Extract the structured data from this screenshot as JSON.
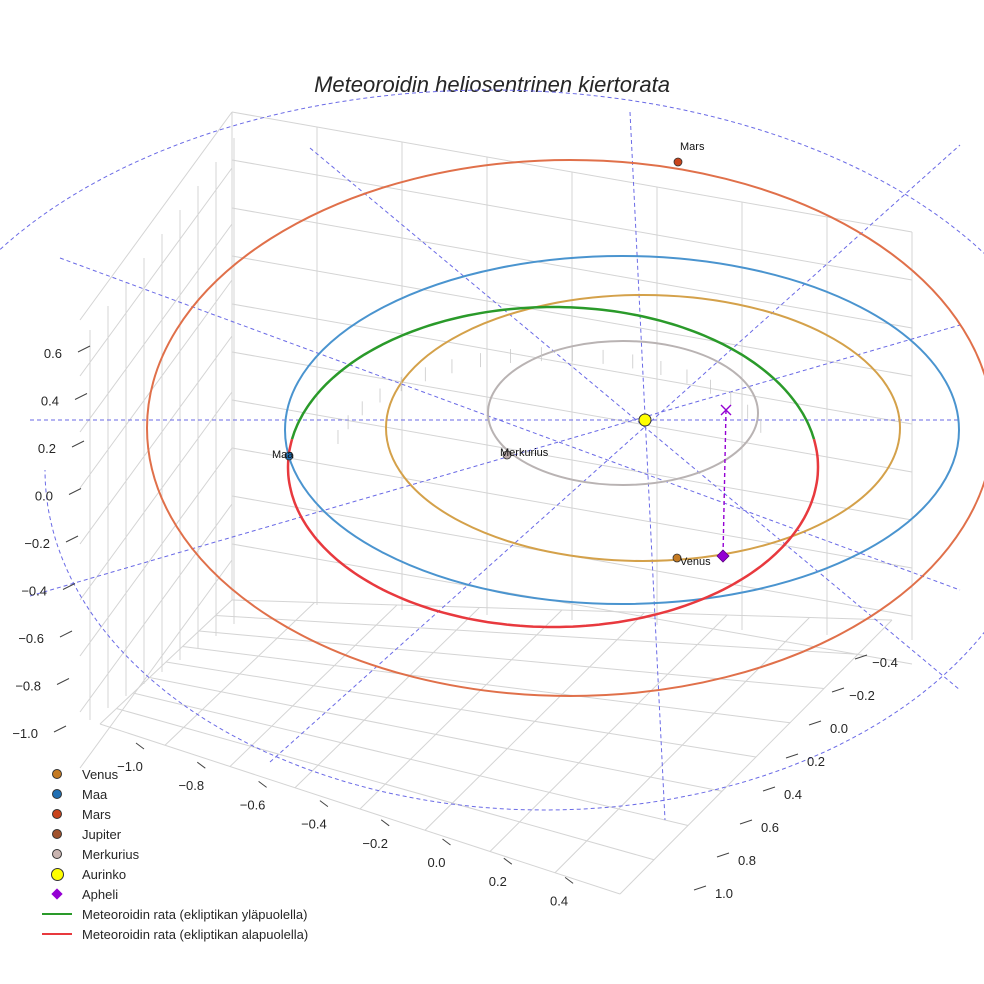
{
  "title": "Meteoroidin heliosentrinen kiertorata",
  "chart_data": {
    "type": "3d-line",
    "title": "Meteoroidin heliosentrinen kiertorata",
    "axes": {
      "x": {
        "ticks": [
          "−1.0",
          "−0.8",
          "−0.6",
          "−0.4",
          "−0.2",
          "0.0",
          "0.2",
          "0.4"
        ]
      },
      "y": {
        "ticks": [
          "−0.4",
          "−0.2",
          "0.0",
          "0.2",
          "0.4",
          "0.6",
          "0.8",
          "1.0"
        ]
      },
      "z": {
        "ticks": [
          "0.6",
          "0.4",
          "0.2",
          "0.0",
          "−0.2",
          "−0.4",
          "−0.6",
          "−0.8",
          "−1.0"
        ]
      }
    },
    "grid": true,
    "legend_position": "bottom-left",
    "orbits": [
      {
        "name": "Merkurius",
        "color": "#b9b3b3"
      },
      {
        "name": "Venus",
        "color": "#d4a14a"
      },
      {
        "name": "Maa",
        "color": "#4a94cf"
      },
      {
        "name": "Mars",
        "color": "#e0704a"
      }
    ],
    "planet_labels": [
      {
        "name": "Mars",
        "color": "#c8441c"
      },
      {
        "name": "Maa",
        "color": "#1f6fb4"
      },
      {
        "name": "Merkurius",
        "color": "#b8a8a8"
      },
      {
        "name": "Venus",
        "color": "#c57a22"
      }
    ],
    "legend": [
      {
        "label": "Venus",
        "marker": "dot",
        "color": "#c57a22"
      },
      {
        "label": "Maa",
        "marker": "dot",
        "color": "#1f6fb4"
      },
      {
        "label": "Mars",
        "marker": "dot",
        "color": "#c8441c"
      },
      {
        "label": "Jupiter",
        "marker": "dot",
        "color": "#a0522d"
      },
      {
        "label": "Merkurius",
        "marker": "dot",
        "color": "#c9b4b0"
      },
      {
        "label": "Aurinko",
        "marker": "sun",
        "color": "#ffff00"
      },
      {
        "label": "Apheli",
        "marker": "diamond",
        "color": "#9400d3"
      },
      {
        "label": "Meteoroidin rata (ekliptikan yläpuolella)",
        "marker": "line",
        "color": "#2a9a2a"
      },
      {
        "label": "Meteoroidin rata (ekliptikan alapuolella)",
        "marker": "line",
        "color": "#e8393e"
      }
    ]
  }
}
